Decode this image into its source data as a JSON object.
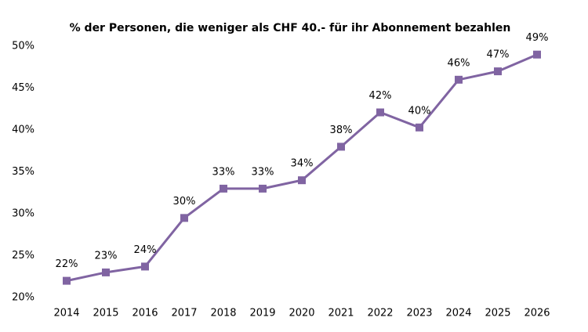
{
  "chart_data": {
    "type": "line",
    "title": "% der Personen, die weniger als CHF 40.- für ihr Abonnement bezahlen",
    "categories": [
      "2014",
      "2015",
      "2016",
      "2017",
      "2018",
      "2019",
      "2020",
      "2021",
      "2022",
      "2023",
      "2024",
      "2025",
      "2026"
    ],
    "values": [
      22.0,
      23.0,
      23.7,
      29.5,
      33.0,
      33.0,
      34.0,
      38.0,
      42.1,
      40.3,
      46.0,
      47.0,
      49.0
    ],
    "value_labels": [
      "22%",
      "23%",
      "24%",
      "30%",
      "33%",
      "33%",
      "34%",
      "38%",
      "42%",
      "40%",
      "46%",
      "47%",
      "49%"
    ],
    "color": "#8064a2",
    "ylim": [
      20,
      50
    ],
    "yticks": [
      {
        "value": 20,
        "label": "20%"
      },
      {
        "value": 25,
        "label": "25%"
      },
      {
        "value": 30,
        "label": "30%"
      },
      {
        "value": 35,
        "label": "35%"
      },
      {
        "value": 40,
        "label": "40%"
      },
      {
        "value": 45,
        "label": "45%"
      },
      {
        "value": 50,
        "label": "50%"
      }
    ],
    "grid": false
  }
}
